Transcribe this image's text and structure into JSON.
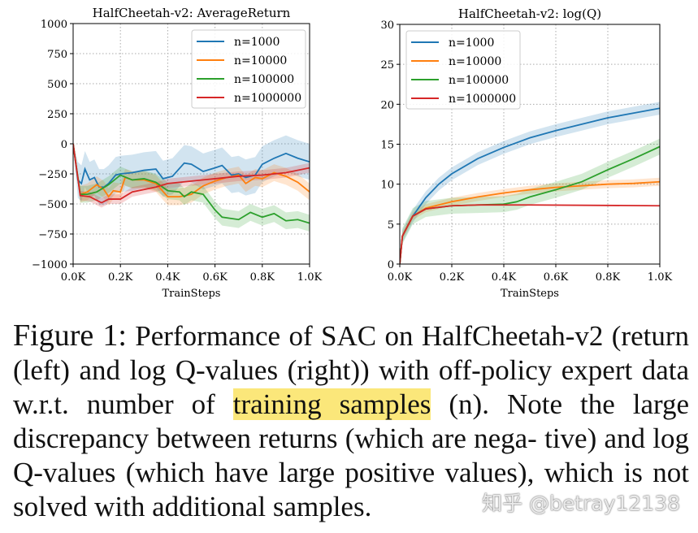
{
  "chart_data": [
    {
      "type": "line",
      "title": "HalfCheetah-v2:  AverageReturn",
      "xlabel": "TrainSteps",
      "ylabel": "",
      "xlim": [
        0,
        1.0
      ],
      "ylim": [
        -1000,
        1000
      ],
      "xticks": [
        "0.0K",
        "0.2K",
        "0.4K",
        "0.6K",
        "0.8K",
        "1.0K"
      ],
      "yticks": [
        "1000",
        "750",
        "500",
        "250",
        "0",
        "−250",
        "−500",
        "−750",
        "−1000"
      ],
      "grid": true,
      "legend": "top-right",
      "series": [
        {
          "name": "n=1000",
          "color": "#1f77b4",
          "band": 150,
          "x": [
            0,
            0.02,
            0.035,
            0.05,
            0.07,
            0.09,
            0.11,
            0.13,
            0.15,
            0.18,
            0.2,
            0.25,
            0.3,
            0.35,
            0.38,
            0.42,
            0.47,
            0.5,
            0.55,
            0.6,
            0.63,
            0.67,
            0.7,
            0.73,
            0.77,
            0.8,
            0.85,
            0.9,
            0.95,
            1.0
          ],
          "y": [
            0,
            -300,
            -330,
            -210,
            -300,
            -280,
            -360,
            -360,
            -330,
            -260,
            -250,
            -240,
            -220,
            -210,
            -290,
            -270,
            -160,
            -170,
            -230,
            -200,
            -180,
            -260,
            -250,
            -280,
            -260,
            -170,
            -120,
            -80,
            -120,
            -150
          ]
        },
        {
          "name": "n=10000",
          "color": "#ff7f0e",
          "band": 70,
          "x": [
            0,
            0.03,
            0.06,
            0.1,
            0.13,
            0.15,
            0.17,
            0.2,
            0.22,
            0.25,
            0.3,
            0.35,
            0.4,
            0.45,
            0.5,
            0.55,
            0.6,
            0.65,
            0.7,
            0.73,
            0.77,
            0.8,
            0.85,
            0.9,
            0.95,
            1.0
          ],
          "y": [
            0,
            -420,
            -400,
            -340,
            -380,
            -440,
            -390,
            -400,
            -280,
            -300,
            -300,
            -330,
            -440,
            -440,
            -420,
            -350,
            -310,
            -280,
            -260,
            -330,
            -280,
            -290,
            -240,
            -270,
            -320,
            -400
          ]
        },
        {
          "name": "n=100000",
          "color": "#2ca02c",
          "band": 70,
          "x": [
            0,
            0.03,
            0.06,
            0.1,
            0.15,
            0.2,
            0.25,
            0.3,
            0.35,
            0.4,
            0.45,
            0.47,
            0.5,
            0.55,
            0.6,
            0.63,
            0.7,
            0.75,
            0.8,
            0.85,
            0.9,
            0.95,
            1.0
          ],
          "y": [
            0,
            -420,
            -420,
            -400,
            -340,
            -260,
            -300,
            -290,
            -320,
            -390,
            -400,
            -440,
            -400,
            -420,
            -550,
            -610,
            -630,
            -570,
            -610,
            -580,
            -640,
            -630,
            -660
          ]
        },
        {
          "name": "n=1000000",
          "color": "#d62728",
          "band": 40,
          "x": [
            0,
            0.03,
            0.07,
            0.12,
            0.15,
            0.2,
            0.25,
            0.3,
            0.35,
            0.4,
            0.5,
            0.6,
            0.7,
            0.8,
            0.9,
            1.0
          ],
          "y": [
            0,
            -430,
            -440,
            -490,
            -460,
            -460,
            -400,
            -380,
            -360,
            -330,
            -310,
            -290,
            -270,
            -260,
            -240,
            -200
          ]
        }
      ]
    },
    {
      "type": "line",
      "title": "HalfCheetah-v2:  log(Q)",
      "xlabel": "TrainSteps",
      "ylabel": "",
      "xlim": [
        0,
        1.0
      ],
      "ylim": [
        0,
        30
      ],
      "xticks": [
        "0.0K",
        "0.2K",
        "0.4K",
        "0.6K",
        "0.8K",
        "1.0K"
      ],
      "yticks": [
        "30",
        "25",
        "20",
        "15",
        "10",
        "5",
        "0"
      ],
      "grid": true,
      "legend": "top-left",
      "series": [
        {
          "name": "n=1000",
          "color": "#1f77b4",
          "band": 0.8,
          "x": [
            0,
            0.01,
            0.05,
            0.1,
            0.15,
            0.2,
            0.3,
            0.4,
            0.5,
            0.6,
            0.7,
            0.8,
            0.9,
            1.0
          ],
          "y": [
            0,
            3.5,
            6,
            8.3,
            10,
            11.3,
            13.2,
            14.6,
            15.8,
            16.7,
            17.5,
            18.3,
            18.9,
            19.5
          ]
        },
        {
          "name": "n=10000",
          "color": "#ff7f0e",
          "band": 0.5,
          "x": [
            0,
            0.01,
            0.05,
            0.1,
            0.2,
            0.3,
            0.4,
            0.5,
            0.6,
            0.7,
            0.8,
            0.9,
            1.0
          ],
          "y": [
            0,
            3.5,
            6,
            7,
            7.8,
            8.4,
            8.9,
            9.3,
            9.6,
            9.8,
            10,
            10.1,
            10.3
          ]
        },
        {
          "name": "n=100000",
          "color": "#2ca02c",
          "band": 1.0,
          "x": [
            0,
            0.01,
            0.05,
            0.1,
            0.2,
            0.3,
            0.4,
            0.45,
            0.5,
            0.6,
            0.7,
            0.8,
            0.9,
            1.0
          ],
          "y": [
            0,
            3.5,
            6,
            6.9,
            7.3,
            7.4,
            7.5,
            7.8,
            8.4,
            9.3,
            10.3,
            11.8,
            13.2,
            14.7
          ]
        },
        {
          "name": "n=1000000",
          "color": "#d62728",
          "band": 0.05,
          "x": [
            0,
            0.01,
            0.05,
            0.1,
            0.2,
            0.3,
            0.5,
            1.0
          ],
          "y": [
            0,
            3.5,
            6,
            6.9,
            7.3,
            7.4,
            7.4,
            7.3
          ]
        }
      ]
    }
  ],
  "caption": {
    "label": "Figure 1:",
    "text_before": "Performance of SAC on HalfCheetah-v2 (return (left) and log Q-values (right)) with off-policy expert data w.r.t. number of",
    "highlight": "training samples",
    "text_after": "(n). Note the large discrepancy between returns (which are nega- tive) and log Q-values (which have large positive values), which is not solved with additional samples."
  },
  "watermark": "知乎 @betray12138"
}
